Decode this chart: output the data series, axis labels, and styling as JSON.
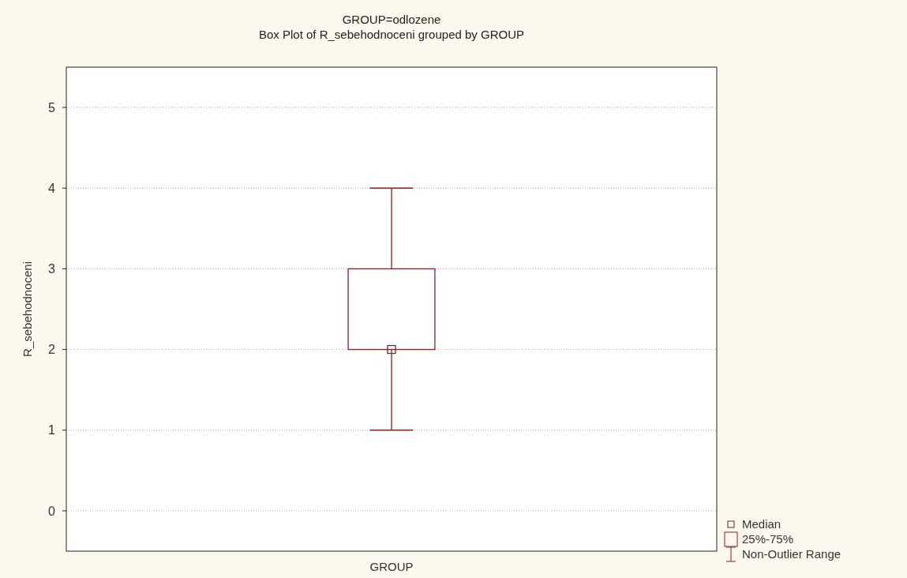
{
  "chart_data": {
    "type": "box",
    "title": "GROUP=odlozene",
    "subtitle": "Box Plot of R_sebehodnoceni grouped by  GROUP",
    "xlabel": "GROUP",
    "ylabel": "R_sebehodnoceni",
    "categories": [
      null
    ],
    "series": [
      {
        "color": "#7a2626",
        "boxes": [
          {
            "low": 1,
            "q1": 2,
            "median": 2,
            "q3": 3,
            "high": 4
          }
        ]
      }
    ],
    "ylim": [
      -0.5,
      5.5
    ],
    "yticks": [
      0,
      1,
      2,
      3,
      4,
      5
    ],
    "grid": "y",
    "annotations": [
      "Median",
      "25%-75%",
      "Non-Outlier Range"
    ]
  }
}
